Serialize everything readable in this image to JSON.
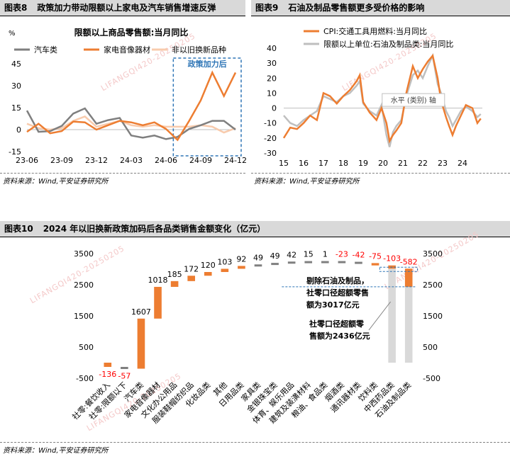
{
  "watermark": "LIFANGQI420-20250205",
  "panels": [
    {
      "number": "图表8",
      "title": "政策加力带动限额以上家电及汽车销售增速反弹",
      "source": "资料来源：Wind,平安证券研究所"
    },
    {
      "number": "图表9",
      "title": "石油及制品零售额更多受价格的影响",
      "source": "资料来源：Wind,平安证券研究所"
    },
    {
      "number": "图表10",
      "title": "2024 年以旧换新政策加码后各品类销售金额变化（亿元）",
      "source": "资料来源：Wind,平安证券研究所"
    }
  ],
  "chart_data": [
    {
      "type": "line",
      "title": "限额以上商品零售额:当月同比",
      "ylabel": "%",
      "ylim": [
        -15,
        45
      ],
      "yticks": [
        "45",
        "30",
        "15",
        "0",
        "-15"
      ],
      "xticks": [
        "23-06",
        "23-09",
        "23-12",
        "24-03",
        "24-06",
        "24-09",
        "24-12"
      ],
      "annotation": "政策加力后",
      "highlight_range": [
        "24-07",
        "24-12"
      ],
      "categories": [
        "23-06",
        "23-07",
        "23-08",
        "23-09",
        "23-10",
        "23-11",
        "23-12",
        "24-01",
        "24-02",
        "24-03",
        "24-04",
        "24-05",
        "24-06",
        "24-07",
        "24-08",
        "24-09",
        "24-10",
        "24-11",
        "24-12"
      ],
      "series": [
        {
          "name": "汽车类",
          "color": "#7f7f7f",
          "values": [
            13,
            -1.5,
            -1,
            2.5,
            11,
            14.5,
            4,
            6.5,
            8,
            -4,
            -5.5,
            -4,
            -6.5,
            -5,
            0.5,
            3,
            6,
            6,
            0
          ]
        },
        {
          "name": "家电音像器材",
          "color": "#ed7d31",
          "values": [
            -1.5,
            4,
            -2.5,
            -1,
            5.5,
            5,
            0,
            3,
            6,
            5,
            3,
            5,
            0.5,
            -7,
            6,
            20,
            39,
            23,
            39
          ]
        },
        {
          "name": "非以旧换新品种",
          "color": "#f8cbad",
          "values": [
            4,
            1,
            0,
            1,
            6,
            9,
            2,
            4,
            6,
            3,
            2,
            3,
            2,
            2,
            2,
            3,
            2,
            -2,
            1
          ]
        }
      ]
    },
    {
      "type": "line",
      "ylim": [
        -30,
        40
      ],
      "yticks": [
        "40",
        "30",
        "20",
        "10",
        "0",
        "-10",
        "-20",
        "-30"
      ],
      "xticks": [
        "15",
        "16",
        "17",
        "18",
        "19",
        "20",
        "21",
        "22",
        "23",
        "24"
      ],
      "x_range": [
        2015,
        2025
      ],
      "annotation": "水平 (类别) 轴",
      "series": [
        {
          "name": "CPI:交通工具用燃料:当月同比",
          "color": "#ed7d31",
          "x": [
            2015.0,
            2015.33,
            2015.67,
            2016.0,
            2016.33,
            2016.67,
            2017.0,
            2017.33,
            2017.67,
            2018.0,
            2018.33,
            2018.67,
            2018.83,
            2019.0,
            2019.33,
            2019.67,
            2019.92,
            2020.17,
            2020.33,
            2020.5,
            2020.67,
            2020.92,
            2021.17,
            2021.5,
            2021.75,
            2022.0,
            2022.25,
            2022.5,
            2022.75,
            2022.92,
            2023.17,
            2023.33,
            2023.5,
            2023.67,
            2023.92,
            2024.17,
            2024.5,
            2024.75,
            2024.92
          ],
          "y": [
            -20,
            -13,
            -14,
            -10,
            -5,
            -8,
            10,
            8,
            3,
            8,
            12,
            18,
            22,
            4,
            -3,
            -8,
            0,
            -10,
            -22,
            -18,
            -15,
            -10,
            10,
            28,
            20,
            26,
            31,
            35,
            20,
            5,
            -6,
            -12,
            -18,
            -12,
            -5,
            2,
            0,
            -10,
            -7
          ]
        },
        {
          "name": "限额以上单位:石油及制品类:当月同比",
          "color": "#bfbfbf",
          "x": [
            2015.0,
            2015.33,
            2015.67,
            2016.0,
            2016.33,
            2016.67,
            2017.0,
            2017.33,
            2017.67,
            2018.0,
            2018.33,
            2018.67,
            2018.83,
            2019.0,
            2019.33,
            2019.67,
            2019.92,
            2020.17,
            2020.33,
            2020.5,
            2020.67,
            2020.92,
            2021.17,
            2021.5,
            2021.75,
            2022.0,
            2022.25,
            2022.5,
            2022.75,
            2022.92,
            2023.17,
            2023.33,
            2023.5,
            2023.67,
            2023.92,
            2024.17,
            2024.5,
            2024.75,
            2024.92
          ],
          "y": [
            -5,
            -10,
            -12,
            -8,
            -5,
            -2,
            8,
            6,
            4,
            8,
            10,
            15,
            18,
            3,
            -2,
            -5,
            2,
            -18,
            -26,
            -16,
            -12,
            -8,
            8,
            22,
            25,
            20,
            28,
            35,
            16,
            10,
            -2,
            -6,
            -12,
            -8,
            -2,
            1,
            -2,
            -6,
            -4
          ]
        }
      ]
    },
    {
      "type": "bar",
      "subtype": "waterfall",
      "ylim": [
        -500,
        3500
      ],
      "yticks": [
        "3500",
        "2500",
        "1500",
        "500",
        "-500"
      ],
      "categories": [
        "社零:餐饮收入",
        "社零:限额以下",
        "汽车类",
        "家电音像器材",
        "文化办公用品",
        "服装鞋帽纺织品",
        "化妆品类",
        "其他",
        "日用品类",
        "家具类",
        "金银珠宝类",
        "体育、娱乐用品",
        "建筑及装潢材料",
        "粮油、食品类",
        "烟酒类",
        "通讯器材类",
        "饮料类",
        "中西药品类",
        "石油及制品类"
      ],
      "values": [
        -136,
        -57,
        1607,
        1018,
        185,
        172,
        120,
        103,
        92,
        49,
        49,
        42,
        15,
        1,
        -23,
        -42,
        -75,
        -103,
        -582
      ],
      "labels": [
        "-136",
        "-57",
        "1607",
        "1018",
        "185",
        "172",
        "120",
        "103",
        "92",
        "49",
        "49",
        "42",
        "15",
        "1",
        "-23",
        "-42",
        "-75",
        "-103",
        "-582"
      ],
      "totals": [
        3017,
        2436
      ],
      "annotations": [
        "剔除石油及制品，社零口径超额零售额为3017亿元",
        "社零口径超额零售额为2436亿元"
      ],
      "colors": {
        "positive": "#ed7d31",
        "negative": "#ed7d31",
        "label_negative": "#ff0000",
        "total": "#d9d9d9",
        "small": "#7f7f7f"
      }
    }
  ]
}
